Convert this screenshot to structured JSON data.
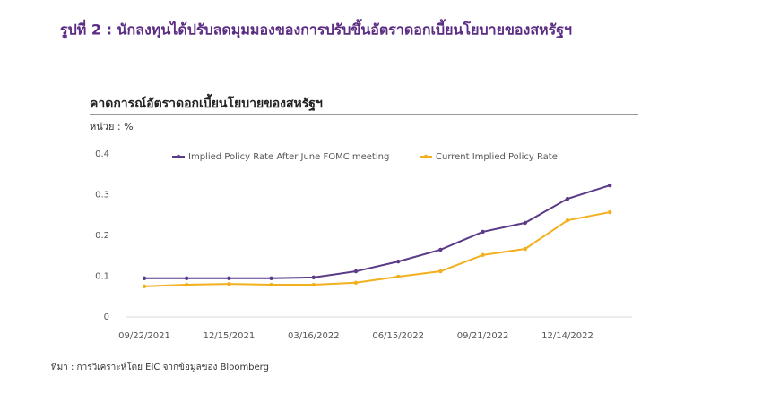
{
  "figure_title": "รูปที่ 2 : นักลงทุนได้ปรับลดมุมมองของการปรับขึ้นอัตราดอกเบี้ยนโยบายของสหรัฐฯ",
  "source": "ที่มา : การวิเคราะห์โดย EIC จากข้อมูลของ Bloomberg",
  "chart_data": {
    "type": "line",
    "title": "คาดการณ์อัตราดอกเบี้ยนโยบายของสหรัฐฯ",
    "unit_label": "หน่วย : %",
    "categories": [
      "09/22/2021",
      null,
      "12/15/2021",
      null,
      "03/16/2022",
      null,
      "06/15/2022",
      null,
      "09/21/2022",
      null,
      "12/14/2022",
      null
    ],
    "series": [
      {
        "name": "Implied Policy Rate After June FOMC meeting",
        "color": "#5b3a87",
        "values": [
          0.095,
          0.095,
          0.095,
          0.095,
          0.097,
          0.112,
          0.136,
          0.165,
          0.209,
          0.231,
          0.29,
          0.323
        ]
      },
      {
        "name": "Current Implied Policy Rate",
        "color": "#f2b01e",
        "values": [
          0.075,
          0.079,
          0.081,
          0.079,
          0.079,
          0.084,
          0.099,
          0.112,
          0.152,
          0.167,
          0.237,
          0.257
        ]
      }
    ],
    "ylim": [
      0,
      0.4
    ],
    "yticks": [
      0,
      0.1,
      0.2,
      0.3,
      0.4
    ],
    "grid": false,
    "legend": "top"
  }
}
